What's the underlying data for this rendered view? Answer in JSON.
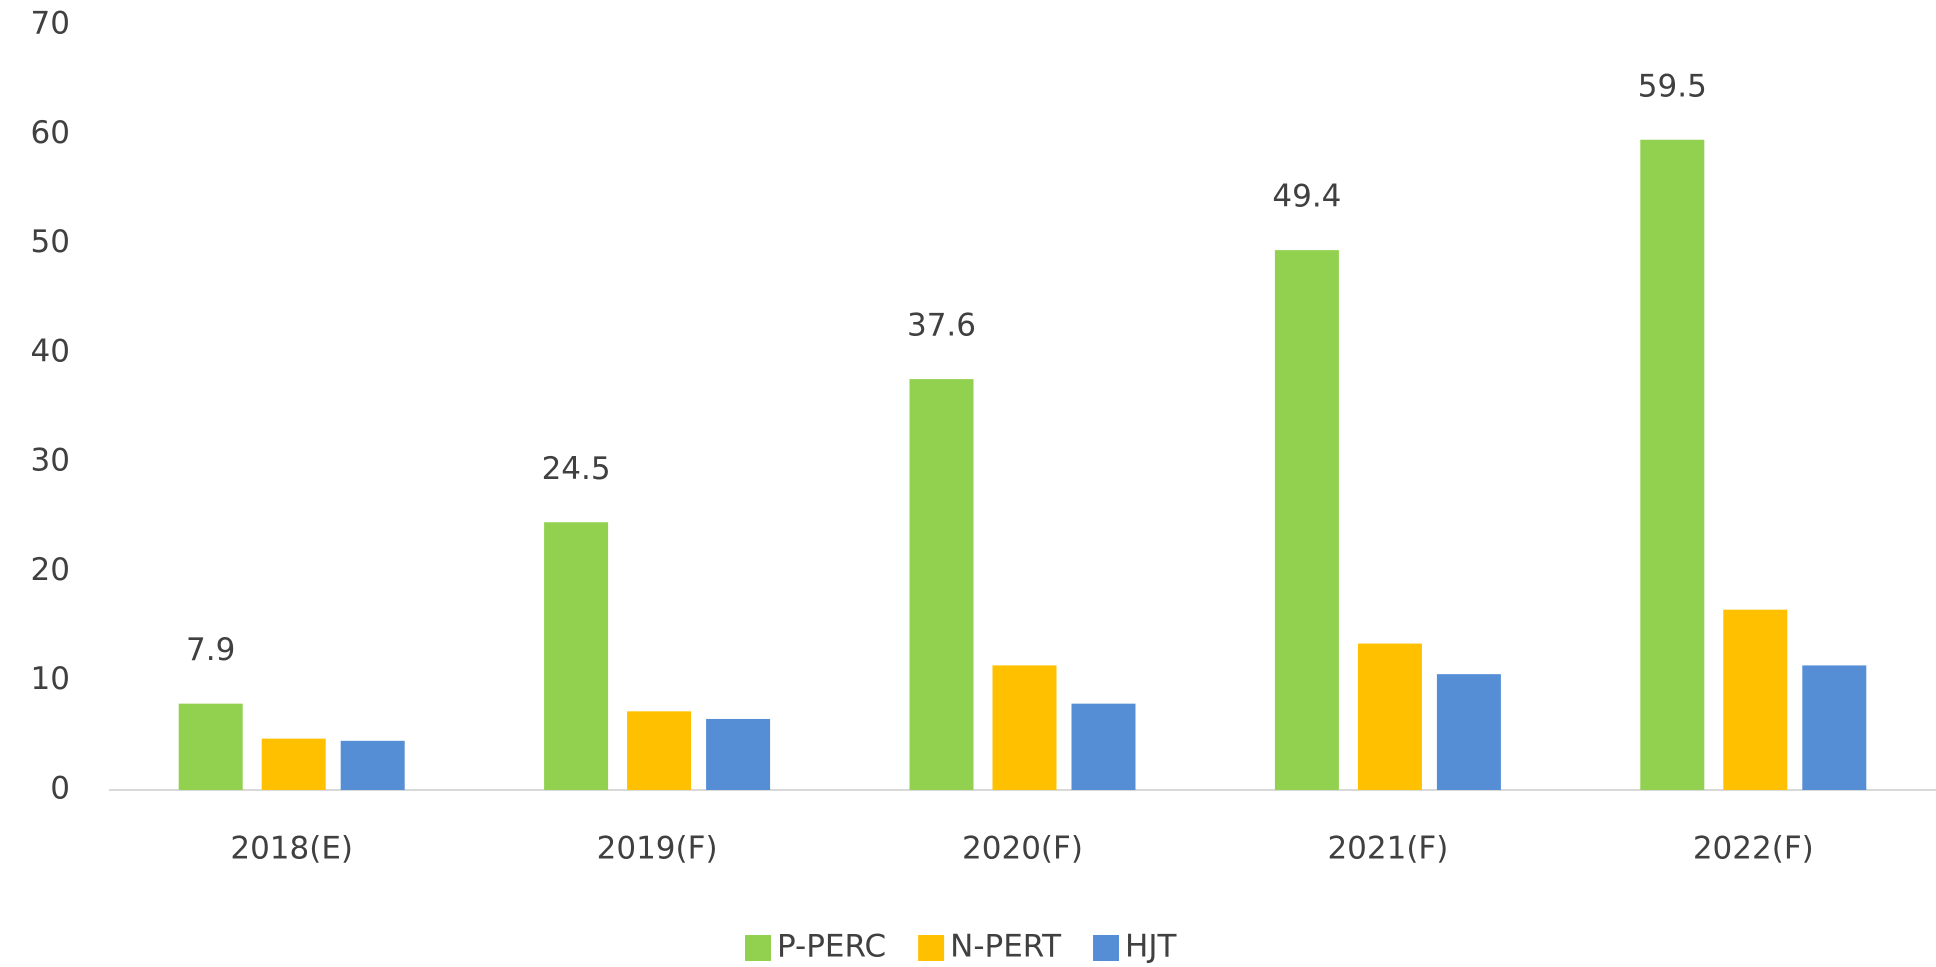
{
  "chart_data": {
    "type": "bar",
    "categories": [
      "2018(E)",
      "2019(F)",
      "2020(F)",
      "2021(F)",
      "2022(F)"
    ],
    "series": [
      {
        "name": "P-PERC",
        "color": "#92d050",
        "values": [
          7.9,
          24.5,
          37.6,
          49.4,
          59.5
        ]
      },
      {
        "name": "N-PERT",
        "color": "#ffc000",
        "values": [
          4.7,
          7.2,
          11.4,
          13.4,
          16.5
        ]
      },
      {
        "name": "HJT",
        "color": "#558ed5",
        "values": [
          4.5,
          6.5,
          7.9,
          10.6,
          11.4
        ]
      }
    ],
    "data_labels_series": 0,
    "ylim": [
      0,
      70
    ],
    "yticks": [
      0,
      10,
      20,
      30,
      40,
      50,
      60,
      70
    ],
    "grid": false,
    "legend": "bottom"
  }
}
